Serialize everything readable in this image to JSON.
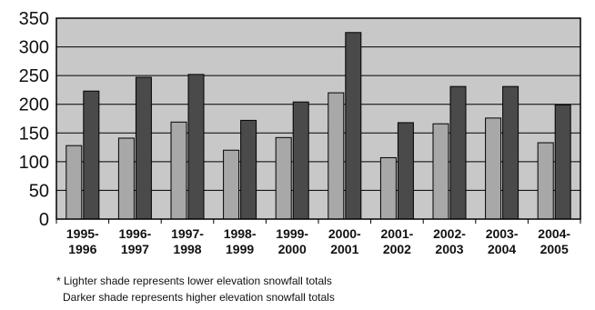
{
  "chart_data": {
    "type": "bar",
    "title": "",
    "xlabel": "",
    "ylabel": "",
    "ylim": [
      0,
      350
    ],
    "yticks": [
      0,
      50,
      100,
      150,
      200,
      250,
      300,
      350
    ],
    "grid": true,
    "categories": [
      "1995-1996",
      "1996-1997",
      "1997-1998",
      "1998-1999",
      "1999-2000",
      "2000-2001",
      "2001-2002",
      "2002-2003",
      "2003-2004",
      "2004-2005"
    ],
    "category_lines": [
      [
        "1995-",
        "1996"
      ],
      [
        "1996-",
        "1997"
      ],
      [
        "1997-",
        "1998"
      ],
      [
        "1998-",
        "1999"
      ],
      [
        "1999-",
        "2000"
      ],
      [
        "2000-",
        "2001"
      ],
      [
        "2001-",
        "2002"
      ],
      [
        "2002-",
        "2003"
      ],
      [
        "2003-",
        "2004"
      ],
      [
        "2004-",
        "2005"
      ]
    ],
    "series": [
      {
        "values": [
          128,
          141,
          169,
          120,
          142,
          220,
          107,
          166,
          176,
          133
        ],
        "color": "#a8a8a8"
      },
      {
        "values": [
          223,
          247,
          252,
          172,
          204,
          325,
          168,
          231,
          231,
          199
        ],
        "color": "#4a4a4a"
      }
    ],
    "plot_background": "#c8c8c8"
  },
  "notes": {
    "line1": "* Lighter shade represents lower elevation snowfall totals",
    "line2": "Darker shade represents higher elevation snowfall totals"
  }
}
